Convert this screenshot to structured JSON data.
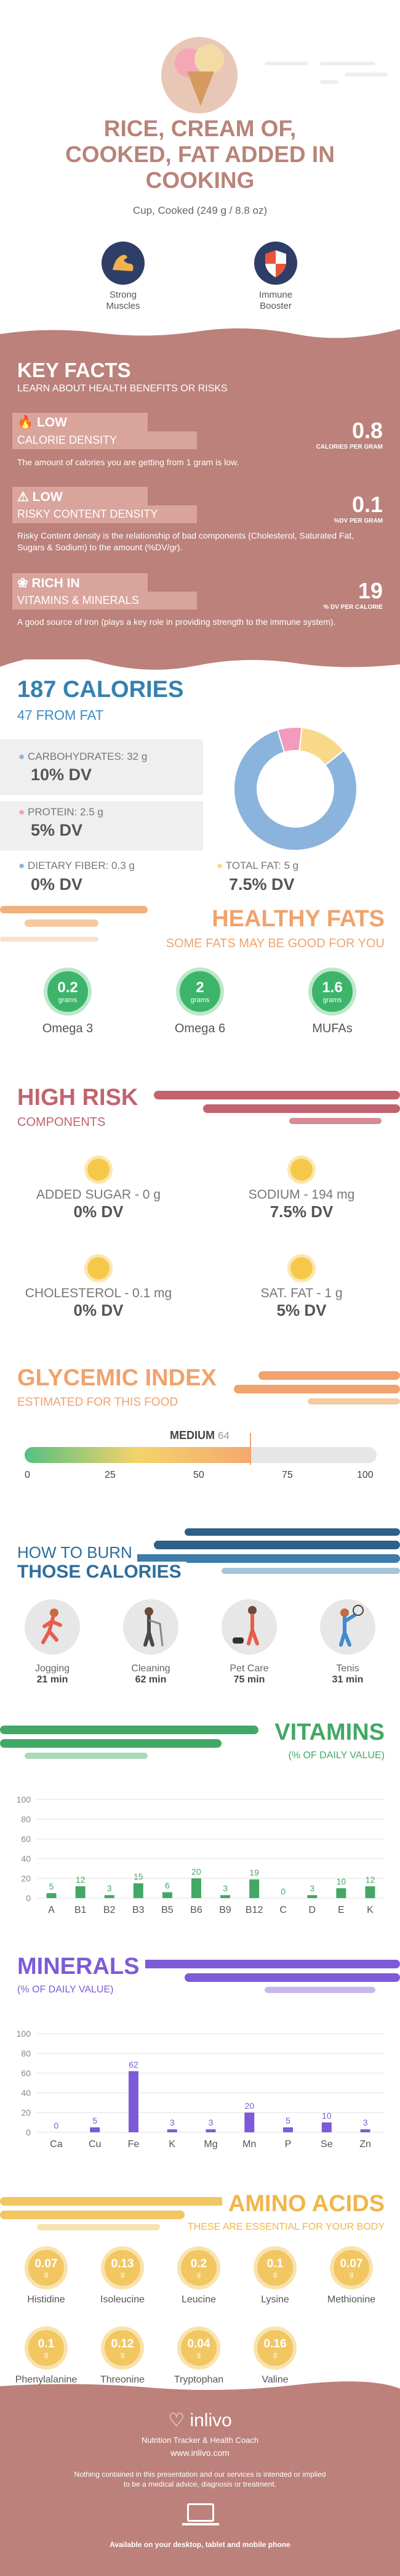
{
  "header": {
    "title_lines": [
      "RICE, CREAM OF,",
      "COOKED, FAT ADDED IN",
      "COOKING"
    ],
    "serving": "Cup, Cooked (249 g / 8.8 oz)",
    "badges": [
      {
        "label_lines": [
          "Strong",
          "Muscles"
        ],
        "icon": "muscle-icon"
      },
      {
        "label_lines": [
          "Immune",
          "Booster"
        ],
        "icon": "shield-icon"
      }
    ]
  },
  "key_facts": {
    "title": "KEY FACTS",
    "subtitle": "LEARN ABOUT HEALTH BENEFITS OR RISKS",
    "facts": [
      {
        "word": "LOW",
        "label": "CALORIE DENSITY",
        "value": "0.8",
        "unit": "CALORIES PER GRAM",
        "desc": "The amount of calories you are getting from 1 gram is low.",
        "icon": "flame-icon"
      },
      {
        "word": "LOW",
        "label": "RISKY CONTENT DENSITY",
        "value": "0.1",
        "unit": "%DV PER GRAM",
        "desc": "Risky Content density is the relationship of bad components (Cholesterol, Saturated Fat, Sugars & Sodium) to the amount (%DV/gr).",
        "icon": "warning-icon"
      },
      {
        "word": "RICH IN",
        "label": "VITAMINS & MINERALS",
        "value": "19",
        "unit": "% DV PER CALORIE",
        "desc": "A good source of iron (plays a key role in providing strength to the immune system).",
        "icon": "leaf-icon"
      }
    ]
  },
  "calories": {
    "title": "187 CALORIES",
    "from_fat": "47 FROM FAT",
    "carbs_label": "CARBOHYDRATES: 32 g",
    "carbs_dv": "10% DV",
    "protein_label": "PROTEIN: 2.5 g",
    "protein_dv": "5% DV",
    "fiber_label": "DIETARY FIBER: 0.3 g",
    "fiber_dv": "0% DV",
    "fat_label": "TOTAL FAT: 5 g",
    "fat_dv": "7.5% DV",
    "donut": [
      {
        "name": "carbohydrates",
        "value": 32,
        "color": "#8ab4de"
      },
      {
        "name": "protein",
        "value": 2.5,
        "color": "#f29bbd"
      },
      {
        "name": "fat",
        "value": 5,
        "color": "#f8d98a"
      }
    ]
  },
  "healthy_fats": {
    "title": "HEALTHY FATS",
    "subtitle": "SOME FATS MAY BE GOOD FOR YOU",
    "items": [
      {
        "value": "0.2",
        "unit": "grams",
        "label": "Omega 3"
      },
      {
        "value": "2",
        "unit": "grams",
        "label": "Omega 6"
      },
      {
        "value": "1.6",
        "unit": "grams",
        "label": "MUFAs"
      }
    ]
  },
  "high_risk": {
    "title": "HIGH RISK",
    "subtitle": "COMPONENTS",
    "items": [
      {
        "label": "ADDED SUGAR - 0 g",
        "dv": "0% DV",
        "face": "#f6c84a"
      },
      {
        "label": "SODIUM - 194 mg",
        "dv": "7.5% DV",
        "face": "#f6c84a"
      },
      {
        "label": "CHOLESTEROL - 0.1 mg",
        "dv": "0% DV",
        "face": "#f6c84a"
      },
      {
        "label": "SAT. FAT - 1 g",
        "dv": "5% DV",
        "face": "#f6c84a"
      }
    ]
  },
  "glycemic": {
    "title": "GLYCEMIC INDEX",
    "subtitle": "ESTIMATED FOR THIS FOOD",
    "level": "MEDIUM",
    "value": 64,
    "value_text": "64",
    "ticks": [
      "0",
      "25",
      "50",
      "75",
      "100"
    ]
  },
  "burn": {
    "title1": "HOW TO BURN",
    "title2": "THOSE CALORIES",
    "items": [
      {
        "label": "Jogging",
        "time": "21 min"
      },
      {
        "label": "Cleaning",
        "time": "62 min"
      },
      {
        "label": "Pet Care",
        "time": "75 min"
      },
      {
        "label": "Tenis",
        "time": "31 min"
      }
    ]
  },
  "vitamins": {
    "title": "VITAMINS",
    "subtitle": "(% OF DAILY VALUE)",
    "color": "#43a865",
    "y_ticks": [
      "100",
      "80",
      "60",
      "40",
      "20",
      "0"
    ],
    "chart_data": {
      "type": "bar",
      "categories": [
        "A",
        "B1",
        "B2",
        "B3",
        "B5",
        "B6",
        "B9",
        "B12",
        "C",
        "D",
        "E",
        "K"
      ],
      "values": [
        5,
        12,
        3,
        15,
        6,
        20,
        3,
        19,
        0,
        3,
        10,
        12
      ],
      "ylim": [
        0,
        100
      ]
    }
  },
  "minerals": {
    "title": "MINERALS",
    "subtitle": "(% OF DAILY VALUE)",
    "color": "#7d5bd6",
    "y_ticks": [
      "100",
      "80",
      "60",
      "40",
      "20",
      "0"
    ],
    "chart_data": {
      "type": "bar",
      "categories": [
        "Ca",
        "Cu",
        "Fe",
        "K",
        "Mg",
        "Mn",
        "P",
        "Se",
        "Zn"
      ],
      "values": [
        0,
        5,
        62,
        3,
        3,
        20,
        5,
        10,
        3
      ],
      "ylim": [
        0,
        100
      ]
    }
  },
  "amino": {
    "title": "AMINO ACIDS",
    "subtitle": "THESE ARE ESSENTIAL FOR YOUR BODY",
    "items": [
      {
        "value": "0.07",
        "unit": "g",
        "label": "Histidine"
      },
      {
        "value": "0.13",
        "unit": "g",
        "label": "Isoleucine"
      },
      {
        "value": "0.2",
        "unit": "g",
        "label": "Leucine"
      },
      {
        "value": "0.1",
        "unit": "g",
        "label": "Lysine"
      },
      {
        "value": "0.07",
        "unit": "g",
        "label": "Methionine"
      },
      {
        "value": "0.1",
        "unit": "g",
        "label": "Phenylalanine"
      },
      {
        "value": "0.12",
        "unit": "g",
        "label": "Threonine"
      },
      {
        "value": "0.04",
        "unit": "g",
        "label": "Tryptophan"
      },
      {
        "value": "0.16",
        "unit": "g",
        "label": "Valine"
      }
    ]
  },
  "footer": {
    "brand": "inlivo",
    "tagline": "Nutrition Tracker & Health Coach",
    "url": "www.inlivo.com",
    "disclaimer1": "Nothing contained in this presentation and our services is intended or implied",
    "disclaimer2": "to be a medical advice, diagnosis or treatment.",
    "available": "Available on your desktop, tablet and mobile phone"
  }
}
